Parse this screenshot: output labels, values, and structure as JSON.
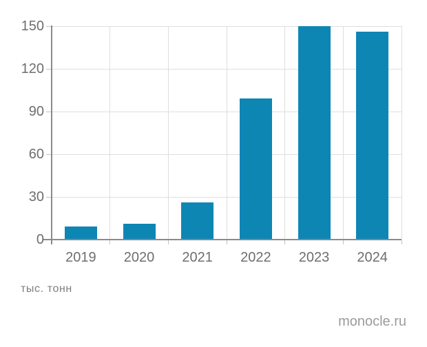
{
  "chart_data": {
    "type": "bar",
    "categories": [
      "2019",
      "2020",
      "2021",
      "2022",
      "2023",
      "2024"
    ],
    "values": [
      9,
      11,
      26,
      99,
      150,
      146
    ],
    "title": "",
    "xlabel": "",
    "ylabel": "тыс. тонн",
    "ylim": [
      0,
      150
    ],
    "yticks": [
      0,
      30,
      60,
      90,
      120,
      150
    ],
    "grid": true,
    "legend_position": "none",
    "bar_color": "#0e86b4"
  },
  "footer": {
    "unit_label": "тыс. тонн",
    "source": "monocle.ru"
  },
  "colors": {
    "background": "#ffffff",
    "bar": "#0e86b4",
    "axis": "#8a8a8a",
    "gridline": "#dedede",
    "tick": "#c2c2c2",
    "tick_label": "#6e6e6e",
    "unit_label": "#7d7d7d",
    "source": "#9b9b9b"
  }
}
